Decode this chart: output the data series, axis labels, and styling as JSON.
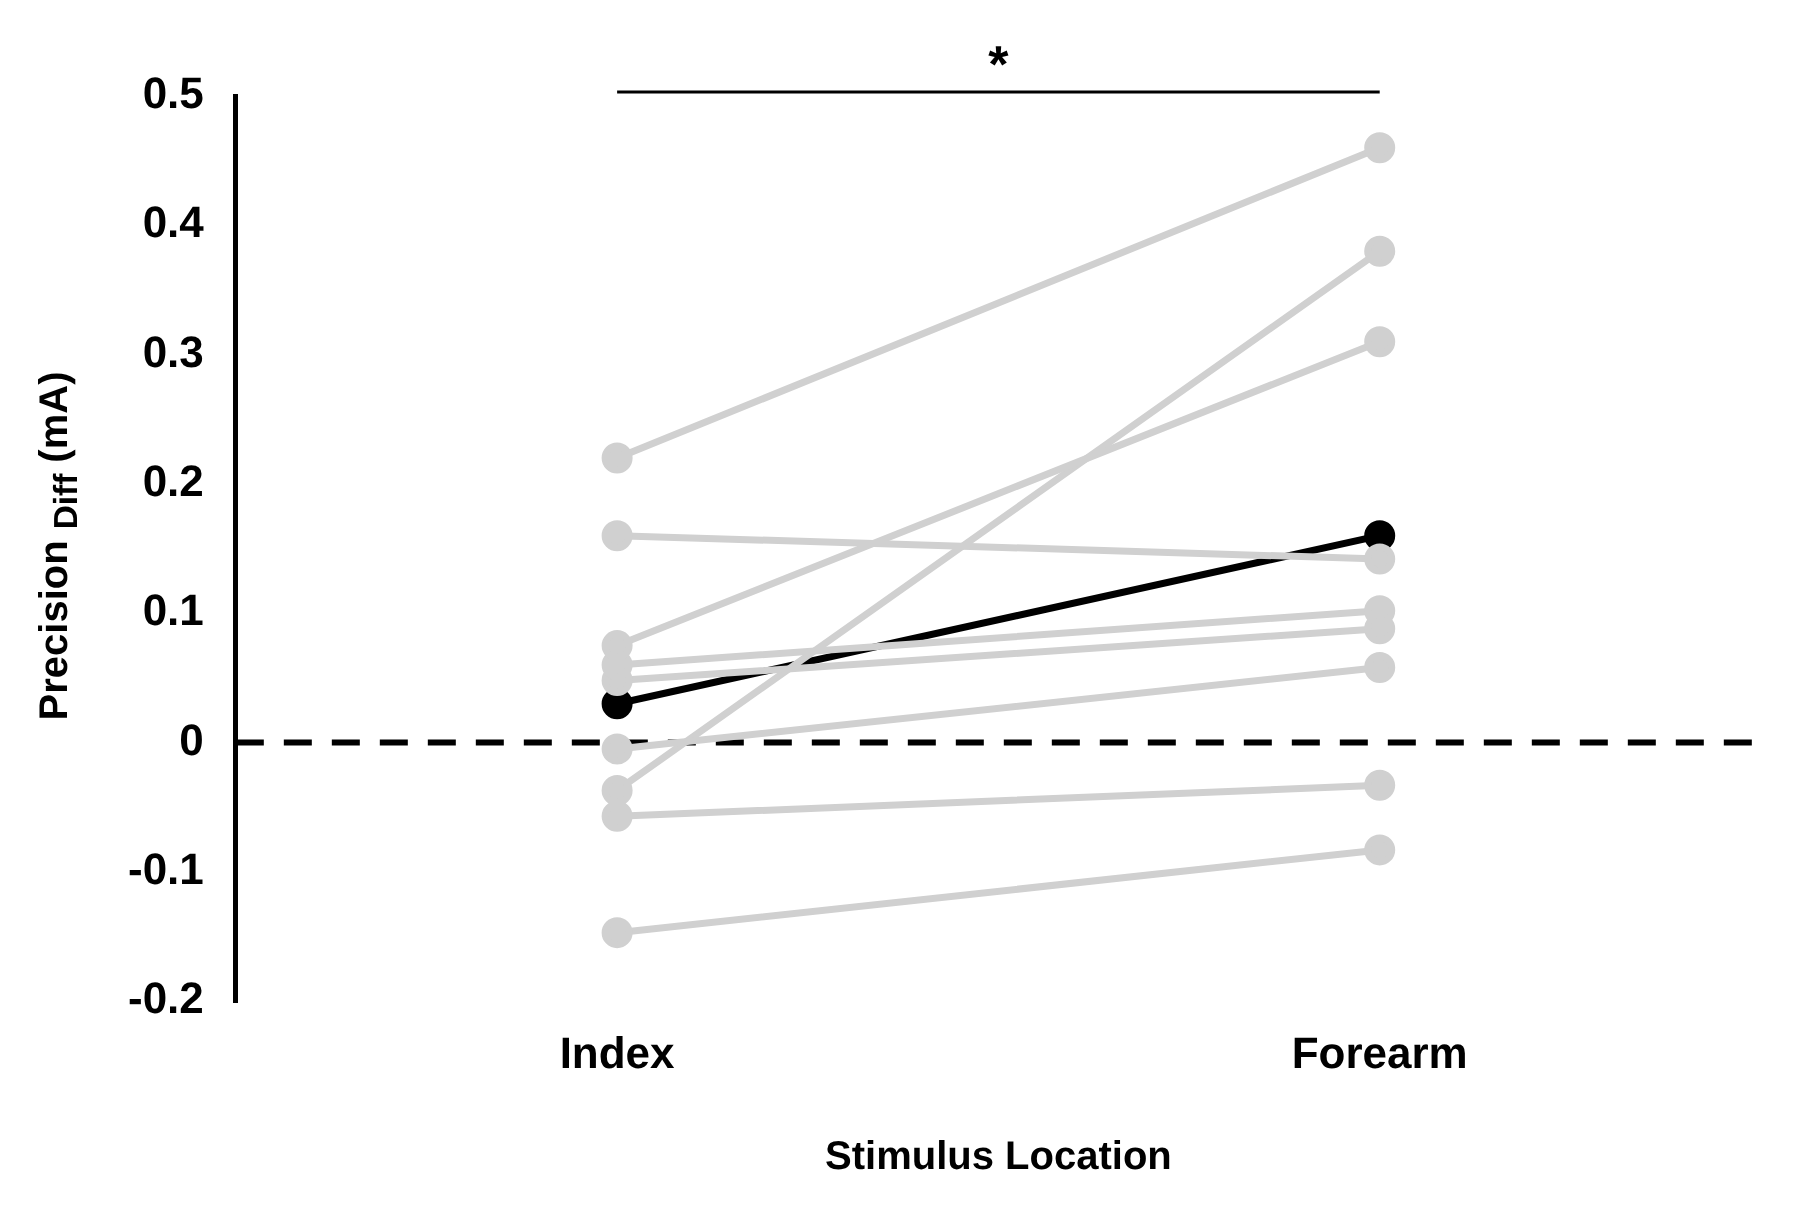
{
  "chart_data": {
    "type": "line",
    "xlabel": "Stimulus Location",
    "ylabel": "Precision $_{Diff}$ (mA)",
    "categories": [
      "Index",
      "Forearm"
    ],
    "series": [
      {
        "color": "#d0d0d0",
        "values": [
          0.22,
          0.46
        ]
      },
      {
        "color": "#d0d0d0",
        "values": [
          0.16,
          0.142
        ]
      },
      {
        "color": "#d0d0d0",
        "values": [
          0.075,
          0.31
        ]
      },
      {
        "color": "#d0d0d0",
        "values": [
          0.06,
          0.102
        ]
      },
      {
        "color": "#d0d0d0",
        "values": [
          0.048,
          0.088
        ]
      },
      {
        "color": "#d0d0d0",
        "values": [
          -0.005,
          0.058
        ]
      },
      {
        "color": "#d0d0d0",
        "values": [
          -0.037,
          0.38
        ]
      },
      {
        "color": "#d0d0d0",
        "values": [
          -0.057,
          -0.033
        ]
      },
      {
        "color": "#d0d0d0",
        "values": [
          -0.147,
          -0.083
        ]
      },
      {
        "color": "#000000",
        "values": [
          0.03,
          0.16
        ]
      }
    ],
    "ylim": [
      -0.2,
      0.5
    ],
    "yticks": [
      -0.2,
      -0.1,
      0,
      0.1,
      0.2,
      0.3,
      0.4,
      0.5
    ],
    "grid": false,
    "legend": false,
    "marker": "circle",
    "line_style": "solid",
    "ref_lines": [
      {
        "axis": "y",
        "value": 0,
        "color": "#000000",
        "line_style": "dashed"
      }
    ],
    "annotations": [
      "*"
    ]
  }
}
